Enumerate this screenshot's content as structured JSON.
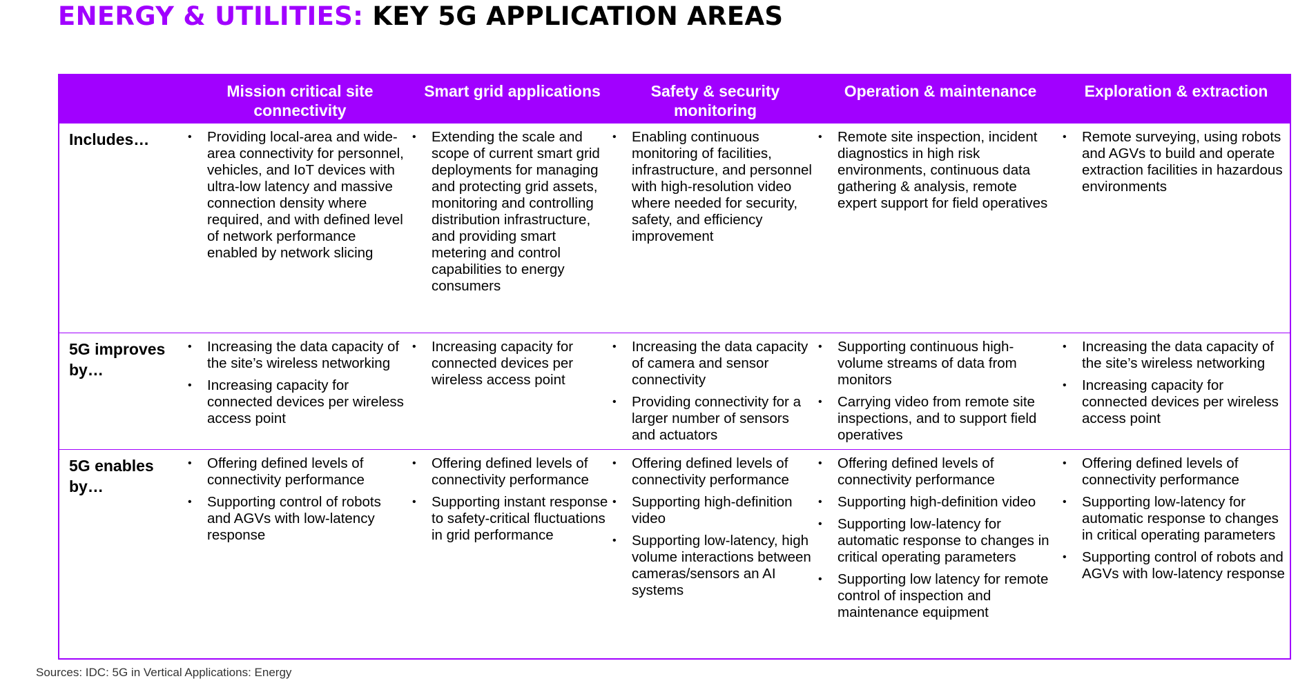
{
  "title": {
    "accent": "ENERGY & UTILITIES:",
    "main": "KEY 5G APPLICATION AREAS",
    "accent_color": "#a100ff"
  },
  "table": {
    "headers": [
      "",
      "Mission critical site connectivity",
      "Smart grid applications",
      "Safety & security monitoring",
      "Operation & maintenance",
      "Exploration & extraction"
    ],
    "rows": [
      {
        "label": "Includes…",
        "cells": [
          [
            "Providing local-area and wide-area connectivity for personnel, vehicles, and IoT devices with ultra-low latency and massive connection density where required, and with defined level of network performance enabled by network slicing"
          ],
          [
            "Extending the scale and scope of current smart grid deployments for managing and protecting grid assets, monitoring and controlling distribution infrastructure, and providing smart metering and control capabilities to energy consumers"
          ],
          [
            "Enabling continuous monitoring of facilities, infrastructure, and personnel with high-resolution video where needed for security, safety, and efficiency improvement"
          ],
          [
            "Remote site inspection, incident diagnostics in high risk environments, continuous data gathering & analysis, remote expert support for field operatives"
          ],
          [
            "Remote surveying, using robots and AGVs to build and operate extraction facilities in hazardous environments"
          ]
        ]
      },
      {
        "label": "5G improves by…",
        "cells": [
          [
            "Increasing the data capacity of the site’s wireless networking",
            "Increasing capacity for connected devices per wireless access point"
          ],
          [
            "Increasing capacity for connected devices per wireless access point"
          ],
          [
            "Increasing the data capacity of camera and sensor connectivity",
            "Providing connectivity for a larger number of sensors and actuators"
          ],
          [
            "Supporting continuous high-volume streams of data from monitors",
            "Carrying video from remote site inspections, and to support field operatives"
          ],
          [
            "Increasing the data capacity of the site’s wireless networking",
            "Increasing capacity for connected devices per wireless access point"
          ]
        ]
      },
      {
        "label": "5G enables by…",
        "cells": [
          [
            "Offering defined levels of connectivity performance",
            "Supporting control of robots and AGVs with low-latency response"
          ],
          [
            "Offering defined levels of connectivity performance",
            "Supporting instant response to safety-critical fluctuations in grid performance"
          ],
          [
            "Offering defined levels of connectivity performance",
            "Supporting high-definition video",
            "Supporting low-latency, high volume interactions between cameras/sensors an AI systems"
          ],
          [
            "Offering defined levels of connectivity performance",
            "Supporting high-definition video",
            "Supporting low-latency for automatic response to changes in critical operating parameters",
            "Supporting low latency for remote control of inspection and maintenance equipment"
          ],
          [
            "Offering defined levels of connectivity performance",
            "Supporting low-latency for automatic response to changes in critical operating parameters",
            "Supporting control of robots and AGVs with low-latency response"
          ]
        ]
      }
    ]
  },
  "source": "Sources: IDC: 5G in Vertical Applications: Energy"
}
